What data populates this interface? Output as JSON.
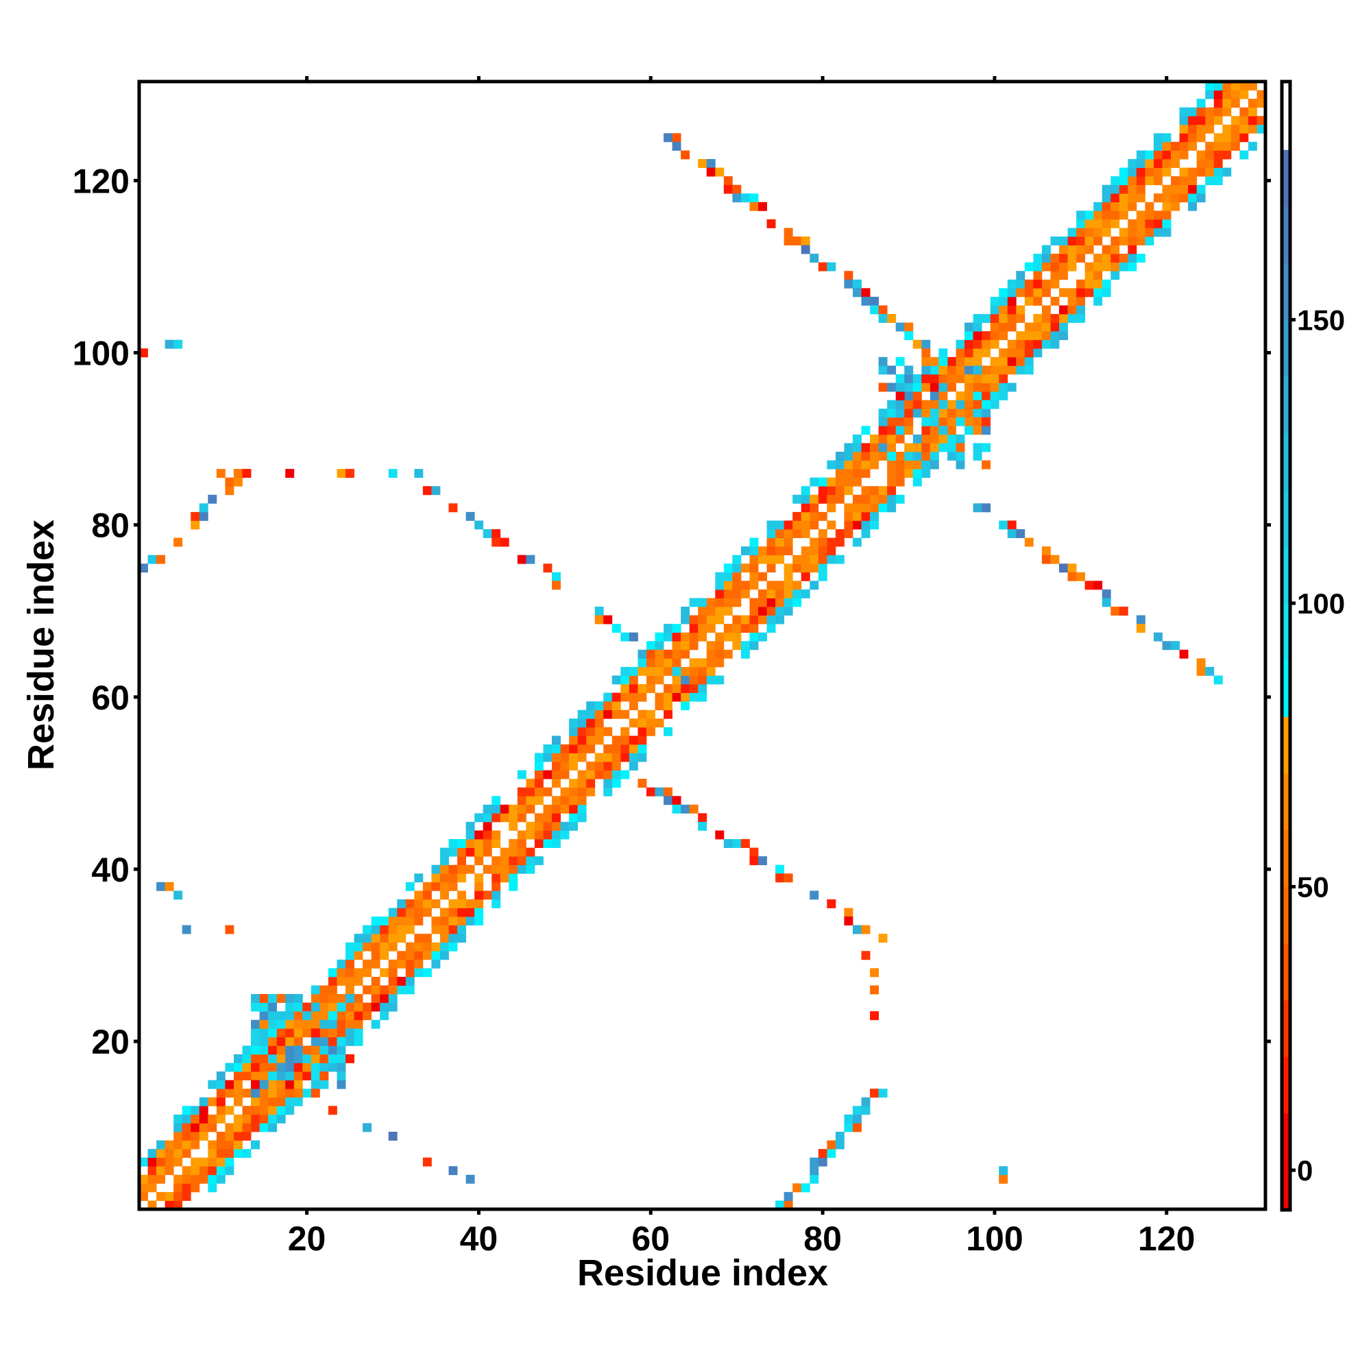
{
  "chart_data": {
    "type": "heatmap",
    "title": "",
    "xlabel": "Residue index",
    "ylabel": "Residue index",
    "xlim": [
      0.5,
      131.5
    ],
    "ylim": [
      0.5,
      131.5
    ],
    "n_residues": 131,
    "x_ticks": [
      20,
      40,
      60,
      80,
      100,
      120
    ],
    "y_ticks": [
      20,
      40,
      60,
      80,
      100,
      120
    ],
    "grid": false,
    "colorbar": {
      "range": [
        -7,
        192
      ],
      "ticks": [
        0,
        50,
        100,
        150
      ],
      "bins": [
        {
          "from": -7,
          "to": 10,
          "color": "#f00000"
        },
        {
          "from": 10,
          "to": 20,
          "color": "#ff1a00"
        },
        {
          "from": 20,
          "to": 30,
          "color": "#ff3300"
        },
        {
          "from": 30,
          "to": 40,
          "color": "#ff5500"
        },
        {
          "from": 40,
          "to": 50,
          "color": "#ff6a00"
        },
        {
          "from": 50,
          "to": 60,
          "color": "#ff7800"
        },
        {
          "from": 60,
          "to": 70,
          "color": "#ff8800"
        },
        {
          "from": 70,
          "to": 80,
          "color": "#ff9e00"
        },
        {
          "from": 80,
          "to": 90,
          "color": "#00f2ff"
        },
        {
          "from": 90,
          "to": 100,
          "color": "#10e2f4"
        },
        {
          "from": 100,
          "to": 110,
          "color": "#1ad4ec"
        },
        {
          "from": 110,
          "to": 120,
          "color": "#20c8e6"
        },
        {
          "from": 120,
          "to": 130,
          "color": "#26bce0"
        },
        {
          "from": 130,
          "to": 140,
          "color": "#30aed8"
        },
        {
          "from": 140,
          "to": 150,
          "color": "#389ed0"
        },
        {
          "from": 150,
          "to": 160,
          "color": "#408ec8"
        },
        {
          "from": 160,
          "to": 170,
          "color": "#4880c0"
        },
        {
          "from": 170,
          "to": 180,
          "color": "#4d74b8"
        },
        {
          "from": 180,
          "to": 192,
          "color": "#ffffff"
        }
      ]
    },
    "diagonal_band": {
      "from": 1,
      "to": 131,
      "half_width": 6
    },
    "features": [
      {
        "x1": 59,
        "y1": 50,
        "x2": 86,
        "y2": 32,
        "width": 2,
        "density": 0.55
      },
      {
        "x1": 75,
        "y1": 1,
        "x2": 86,
        "y2": 14,
        "width": 2,
        "density": 0.6
      },
      {
        "x1": 97,
        "y1": 83,
        "x2": 125,
        "y2": 62,
        "width": 2,
        "density": 0.55
      },
      {
        "x1": 100,
        "y1": 1,
        "x2": 101,
        "y2": 5,
        "width": 1,
        "density": 0.6
      },
      {
        "x1": 62,
        "y1": 125,
        "x2": 96,
        "y2": 97,
        "width": 2,
        "density": 0.55
      },
      {
        "x1": 1,
        "y1": 75,
        "x2": 12,
        "y2": 86,
        "width": 2,
        "density": 0.6
      },
      {
        "x1": 32,
        "y1": 86,
        "x2": 66,
        "y2": 60,
        "width": 2,
        "density": 0.5
      },
      {
        "x1": 10,
        "y1": 86,
        "x2": 33,
        "y2": 86,
        "width": 1,
        "density": 0.4
      },
      {
        "x1": 1,
        "y1": 100,
        "x2": 5,
        "y2": 101,
        "width": 1,
        "density": 0.7
      },
      {
        "x1": 1,
        "y1": 40,
        "x2": 6,
        "y2": 36,
        "width": 1,
        "density": 0.5
      },
      {
        "x1": 6,
        "y1": 33,
        "x2": 13,
        "y2": 33,
        "width": 1,
        "density": 0.5
      },
      {
        "x1": 22,
        "y1": 13,
        "x2": 40,
        "y2": 3,
        "width": 1,
        "density": 0.35
      },
      {
        "x1": 85,
        "y1": 33,
        "x2": 86,
        "y2": 23,
        "width": 1,
        "density": 0.4
      }
    ],
    "blobs": [
      {
        "x1": 14,
        "y1": 14,
        "x2": 25,
        "y2": 25,
        "value_range": [
          85,
          160
        ]
      },
      {
        "x1": 87,
        "y1": 87,
        "x2": 99,
        "y2": 99,
        "value_range": [
          85,
          160
        ]
      }
    ]
  }
}
